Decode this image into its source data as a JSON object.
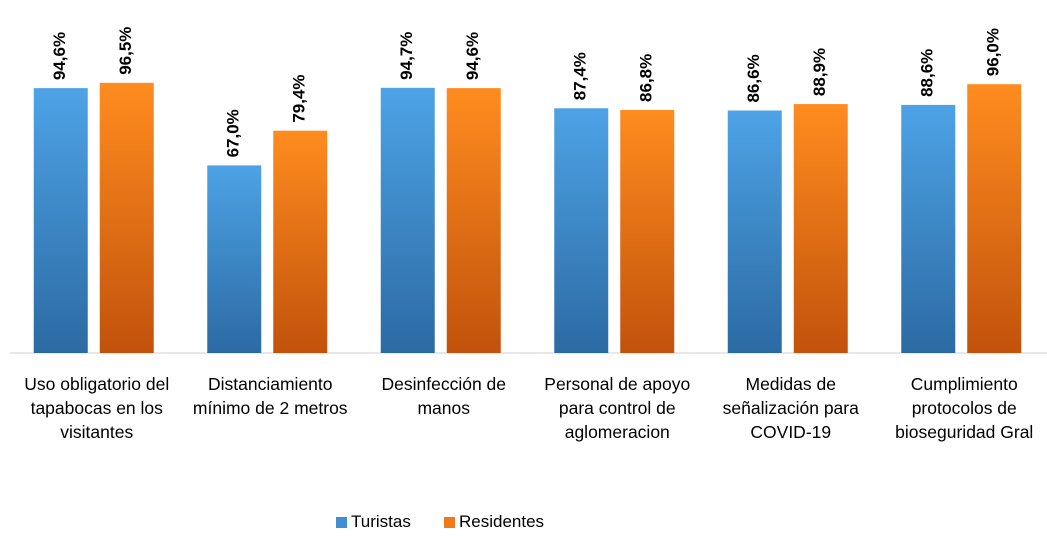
{
  "chart_data": {
    "type": "bar",
    "categories": [
      "Uso obligatorio del tapabocas en los visitantes",
      "Distanciamiento mínimo de 2 metros",
      "Desinfección de manos",
      "Personal de apoyo para control de aglomeracion",
      "Medidas de señalización para COVID-19",
      "Cumplimiento protocolos de bioseguridad Gral"
    ],
    "series": [
      {
        "name": "Turistas",
        "color": "#3f8fd2",
        "values": [
          94.6,
          67.0,
          94.7,
          87.4,
          86.6,
          88.6
        ],
        "value_labels": [
          "94,6%",
          "67,0%",
          "94,7%",
          "87,4%",
          "86,6%",
          "88,6%"
        ]
      },
      {
        "name": "Residentes",
        "color": "#f07a1a",
        "values": [
          96.5,
          79.4,
          94.6,
          86.8,
          88.9,
          96.0
        ],
        "value_labels": [
          "96,5%",
          "79,4%",
          "94,6%",
          "86,8%",
          "88,9%",
          "96,0%"
        ]
      }
    ],
    "legend": "bottom"
  }
}
